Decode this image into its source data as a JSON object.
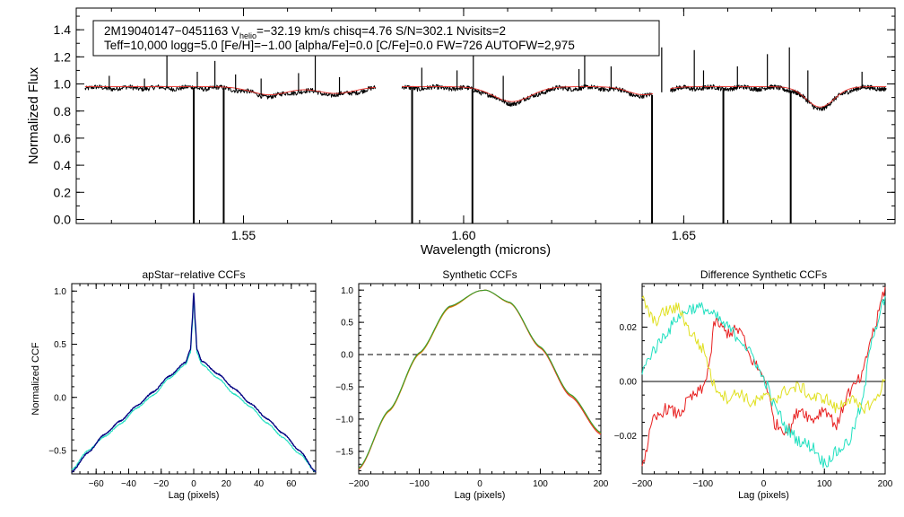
{
  "figure": {
    "header": {
      "line1_prefix": "2M19040147−0451163  V",
      "line1_sub": "helio",
      "line1_suffix": "=−32.19 km/s  chisq=4.76  S/N=302.1  Nvisits=2",
      "line2": "Teff=10,000 logg=5.0 [Fe/H]=−1.00 [alpha/Fe]=0.0 [C/Fe]=0.0 FW=726 AUTOFW=2,975"
    },
    "colors": {
      "observed": "#000000",
      "model": "#e8302a",
      "ccf_obs": "#000080",
      "ccf_model": "#20e0c0",
      "synth_red": "#e82020",
      "synth_orange": "#d08000",
      "synth_green": "#30a030",
      "diff_red": "#e82020",
      "diff_cyan": "#20e0c0",
      "diff_yellow": "#e0e020"
    }
  },
  "chart_data": [
    {
      "id": "spectrum",
      "type": "line",
      "title": "",
      "xlabel": "Wavelength (microns)",
      "ylabel": "Normalized Flux",
      "xlim": [
        1.512,
        1.698
      ],
      "ylim": [
        -0.03,
        1.56
      ],
      "xticks": [
        1.55,
        1.6,
        1.65
      ],
      "xtick_labels": [
        "1.55",
        "1.60",
        "1.65"
      ],
      "yticks": [
        0.0,
        0.2,
        0.4,
        0.6,
        0.8,
        1.0,
        1.2,
        1.4
      ],
      "ytick_labels": [
        "0.0",
        "0.2",
        "0.4",
        "0.6",
        "0.8",
        "1.0",
        "1.2",
        "1.4"
      ],
      "chips": [
        [
          1.514,
          1.58
        ],
        [
          1.586,
          1.643
        ],
        [
          1.647,
          1.696
        ]
      ],
      "continuum": 0.97,
      "absorption_features": [
        {
          "center": 1.556,
          "width": 0.006,
          "depth": 0.06
        },
        {
          "center": 1.571,
          "width": 0.006,
          "depth": 0.05
        },
        {
          "center": 1.611,
          "width": 0.006,
          "depth": 0.11
        },
        {
          "center": 1.641,
          "width": 0.005,
          "depth": 0.06
        },
        {
          "center": 1.681,
          "width": 0.0045,
          "depth": 0.15
        }
      ],
      "emission_spikes": [
        {
          "x": 1.5195,
          "y": 1.06
        },
        {
          "x": 1.5275,
          "y": 1.04
        },
        {
          "x": 1.5326,
          "y": 1.3
        },
        {
          "x": 1.5395,
          "y": 1.09
        },
        {
          "x": 1.5435,
          "y": 1.17
        },
        {
          "x": 1.5482,
          "y": 1.07
        },
        {
          "x": 1.554,
          "y": 1.04
        },
        {
          "x": 1.5625,
          "y": 1.08
        },
        {
          "x": 1.5663,
          "y": 1.32
        },
        {
          "x": 1.5718,
          "y": 1.05
        },
        {
          "x": 1.5905,
          "y": 1.12
        },
        {
          "x": 1.5985,
          "y": 1.1
        },
        {
          "x": 1.6022,
          "y": 1.22
        },
        {
          "x": 1.609,
          "y": 1.06
        },
        {
          "x": 1.6262,
          "y": 1.11
        },
        {
          "x": 1.6275,
          "y": 1.21
        },
        {
          "x": 1.6335,
          "y": 1.13
        },
        {
          "x": 1.645,
          "y": 1.27
        },
        {
          "x": 1.6524,
          "y": 1.25
        },
        {
          "x": 1.6545,
          "y": 1.1
        },
        {
          "x": 1.6622,
          "y": 1.13
        },
        {
          "x": 1.669,
          "y": 1.22
        },
        {
          "x": 1.674,
          "y": 1.27
        },
        {
          "x": 1.6782,
          "y": 1.1
        },
        {
          "x": 1.6905,
          "y": 1.09
        }
      ],
      "bad_pixel_drops": [
        {
          "x": 1.5387,
          "y": -0.03
        },
        {
          "x": 1.5455,
          "y": -0.03
        },
        {
          "x": 1.5883,
          "y": -0.03
        },
        {
          "x": 1.602,
          "y": -0.03
        },
        {
          "x": 1.6428,
          "y": -0.03
        },
        {
          "x": 1.659,
          "y": -0.03
        },
        {
          "x": 1.6743,
          "y": -0.03
        }
      ]
    },
    {
      "id": "apstar-ccf",
      "type": "line",
      "title": "apStar−relative CCFs",
      "xlabel": "Lag (pixels)",
      "ylabel": "Normalized CCF",
      "xlim": [
        -75,
        75
      ],
      "ylim": [
        -0.72,
        1.07
      ],
      "xticks": [
        -60,
        -40,
        -20,
        0,
        20,
        40,
        60
      ],
      "xtick_labels": [
        "−60",
        "−40",
        "−20",
        "0",
        "20",
        "40",
        "60"
      ],
      "yticks": [
        -0.5,
        0.0,
        0.5,
        1.0
      ],
      "ytick_labels": [
        "−0.5",
        "0.0",
        "0.5",
        "1.0"
      ],
      "series": [
        {
          "name": "observed CCF",
          "x": [
            -75,
            -65,
            -55,
            -45,
            -35,
            -25,
            -15,
            -5,
            -2,
            -1,
            0,
            1,
            2,
            5,
            15,
            25,
            35,
            45,
            55,
            65,
            75
          ],
          "y": [
            -0.7,
            -0.52,
            -0.35,
            -0.22,
            -0.08,
            0.05,
            0.2,
            0.33,
            0.45,
            0.7,
            0.98,
            0.7,
            0.45,
            0.34,
            0.22,
            0.08,
            -0.06,
            -0.2,
            -0.34,
            -0.5,
            -0.7
          ]
        },
        {
          "name": "model CCF",
          "x": [
            -75,
            -65,
            -55,
            -45,
            -35,
            -25,
            -15,
            -5,
            -2,
            -1,
            0,
            1,
            2,
            5,
            15,
            25,
            35,
            45,
            55,
            65,
            75
          ],
          "y": [
            -0.68,
            -0.5,
            -0.37,
            -0.25,
            -0.1,
            0.02,
            0.18,
            0.31,
            0.42,
            0.65,
            0.93,
            0.65,
            0.42,
            0.31,
            0.18,
            0.03,
            -0.09,
            -0.24,
            -0.38,
            -0.53,
            -0.7
          ]
        }
      ]
    },
    {
      "id": "synthetic-ccf",
      "type": "line",
      "title": "Synthetic CCFs",
      "xlabel": "Lag (pixels)",
      "ylabel": "",
      "xlim": [
        -200,
        200
      ],
      "ylim": [
        -1.85,
        1.1
      ],
      "xticks": [
        -200,
        -100,
        0,
        100,
        200
      ],
      "xtick_labels": [
        "−200",
        "−100",
        "0",
        "100",
        "200"
      ],
      "yticks": [
        -1.5,
        -1.0,
        -0.5,
        0.0,
        0.5,
        1.0
      ],
      "ytick_labels": [
        "−1.5",
        "−1.0",
        "−0.5",
        "0.0",
        "0.5",
        "1.0"
      ],
      "reference_line": 0.0,
      "series": [
        {
          "name": "synthetic red",
          "x": [
            -200,
            -150,
            -100,
            -50,
            0,
            10,
            50,
            100,
            150,
            200
          ],
          "y": [
            -1.78,
            -0.87,
            0.02,
            0.74,
            0.99,
            1.0,
            0.8,
            0.1,
            -0.65,
            -1.24
          ]
        },
        {
          "name": "synthetic orange",
          "x": [
            -200,
            -150,
            -100,
            -50,
            0,
            10,
            50,
            100,
            150,
            200
          ],
          "y": [
            -1.77,
            -0.88,
            0.01,
            0.73,
            0.99,
            1.0,
            0.8,
            0.11,
            -0.63,
            -1.22
          ]
        },
        {
          "name": "synthetic green",
          "x": [
            -200,
            -150,
            -100,
            -50,
            0,
            10,
            50,
            100,
            150,
            200
          ],
          "y": [
            -1.76,
            -0.86,
            0.03,
            0.75,
            0.99,
            1.0,
            0.81,
            0.12,
            -0.62,
            -1.21
          ]
        }
      ]
    },
    {
      "id": "difference-ccf",
      "type": "line",
      "title": "Difference Synthetic CCFs",
      "xlabel": "Lag (pixels)",
      "ylabel": "",
      "xlim": [
        -200,
        200
      ],
      "ylim": [
        -0.034,
        0.036
      ],
      "xticks": [
        -200,
        -100,
        0,
        100,
        200
      ],
      "xtick_labels": [
        "−200",
        "−100",
        "0",
        "100",
        "200"
      ],
      "yticks": [
        -0.02,
        0.0,
        0.02
      ],
      "ytick_labels": [
        "−0.02",
        "0.00",
        "0.02"
      ],
      "reference_line": 0.0,
      "series": [
        {
          "name": "difference red",
          "x": [
            -200,
            -180,
            -160,
            -140,
            -120,
            -100,
            -90,
            -80,
            -60,
            -40,
            -20,
            0,
            20,
            40,
            60,
            80,
            100,
            120,
            140,
            160,
            180,
            200
          ],
          "y": [
            -0.03,
            -0.014,
            -0.01,
            -0.012,
            -0.006,
            -0.003,
            0.006,
            0.022,
            0.018,
            0.019,
            0.008,
            0.002,
            -0.016,
            -0.018,
            -0.01,
            -0.014,
            -0.01,
            -0.016,
            -0.004,
            0.001,
            0.018,
            0.034
          ]
        },
        {
          "name": "difference cyan",
          "x": [
            -200,
            -180,
            -160,
            -140,
            -120,
            -100,
            -80,
            -60,
            -40,
            -20,
            0,
            20,
            40,
            60,
            80,
            100,
            120,
            140,
            160,
            180,
            200
          ],
          "y": [
            0.004,
            0.012,
            0.018,
            0.024,
            0.027,
            0.027,
            0.024,
            0.02,
            0.016,
            0.01,
            0.001,
            -0.01,
            -0.018,
            -0.022,
            -0.024,
            -0.03,
            -0.026,
            -0.022,
            -0.01,
            0.018,
            0.03
          ]
        },
        {
          "name": "difference yellow",
          "x": [
            -200,
            -180,
            -160,
            -140,
            -120,
            -100,
            -80,
            -60,
            -40,
            -20,
            0,
            20,
            40,
            60,
            80,
            100,
            120,
            140,
            160,
            180,
            200
          ],
          "y": [
            0.03,
            0.022,
            0.026,
            0.027,
            0.018,
            0.012,
            -0.002,
            -0.006,
            -0.004,
            -0.008,
            -0.006,
            -0.006,
            -0.003,
            -0.002,
            -0.006,
            -0.006,
            -0.01,
            -0.006,
            -0.01,
            -0.008,
            0.0
          ]
        }
      ]
    }
  ]
}
